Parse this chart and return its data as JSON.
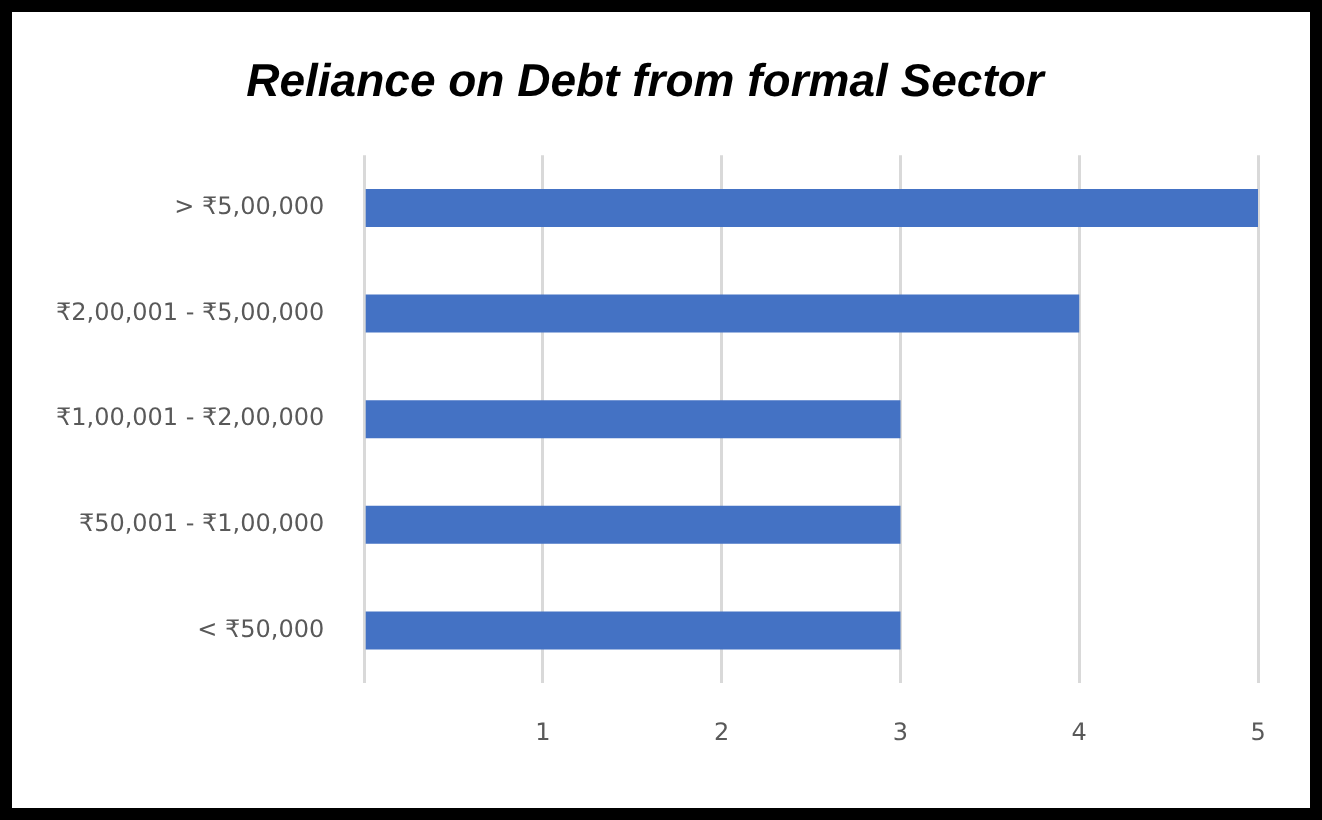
{
  "chart_data": {
    "type": "bar",
    "orientation": "horizontal",
    "title": "Reliance on Debt from formal Sector",
    "categories": [
      "> ₹5,00,000",
      "₹2,00,001 - ₹5,00,000",
      "₹1,00,001 - ₹2,00,000",
      "₹50,001 - ₹1,00,000",
      "< ₹50,000"
    ],
    "values": [
      5,
      4,
      3,
      3,
      3
    ],
    "color": "#4472c4",
    "xlim": [
      0,
      5
    ],
    "xticks": [
      {
        "value": 0,
        "label": null
      },
      1,
      2,
      3,
      4,
      5
    ],
    "grid": "x",
    "legend": false
  }
}
